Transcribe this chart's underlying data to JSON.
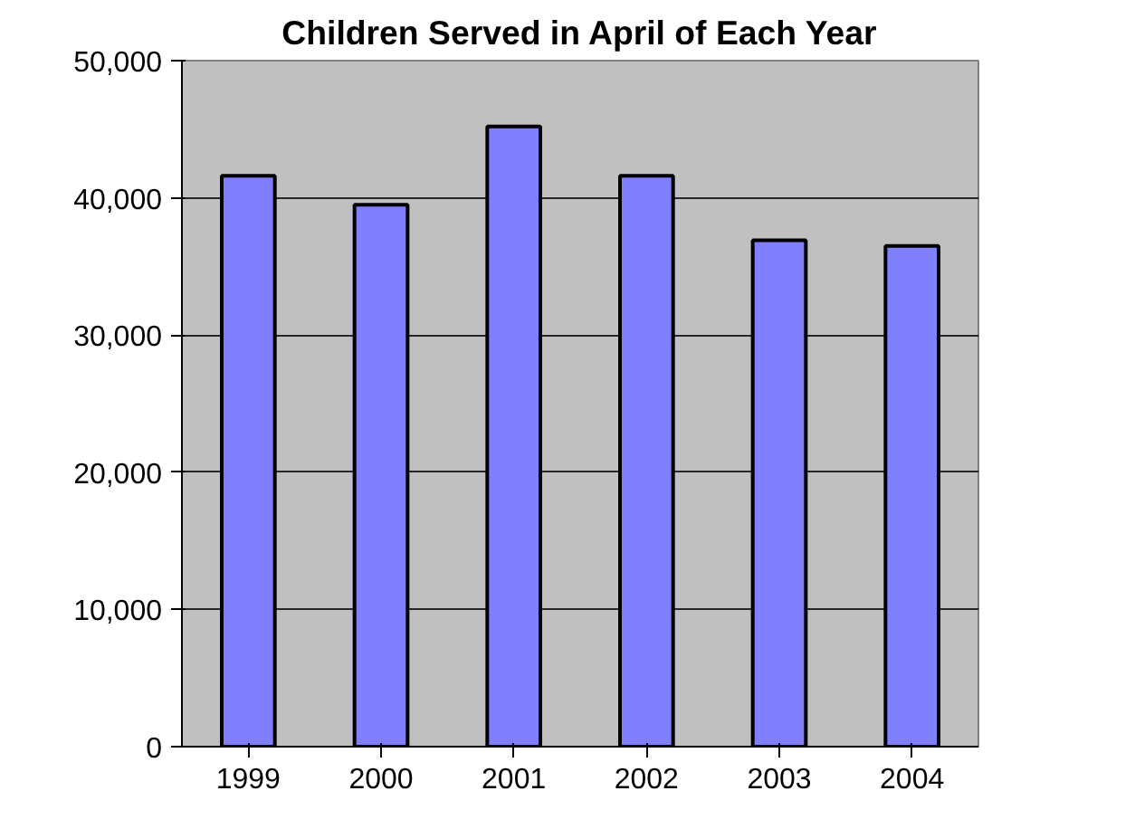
{
  "chart_data": {
    "type": "bar",
    "title": "Children Served in April of Each Year",
    "categories": [
      "1999",
      "2000",
      "2001",
      "2002",
      "2003",
      "2004"
    ],
    "values": [
      41600,
      39500,
      45200,
      41600,
      36900,
      36500
    ],
    "color": "#8080ff",
    "ylim": [
      0,
      50000
    ],
    "yticks": [
      {
        "value": 0,
        "label": "0"
      },
      {
        "value": 10000,
        "label": "10,000"
      },
      {
        "value": 20000,
        "label": "20,000"
      },
      {
        "value": 30000,
        "label": "30,000"
      },
      {
        "value": 40000,
        "label": "40,000"
      },
      {
        "value": 50000,
        "label": "50,000"
      }
    ],
    "grid": "y"
  }
}
